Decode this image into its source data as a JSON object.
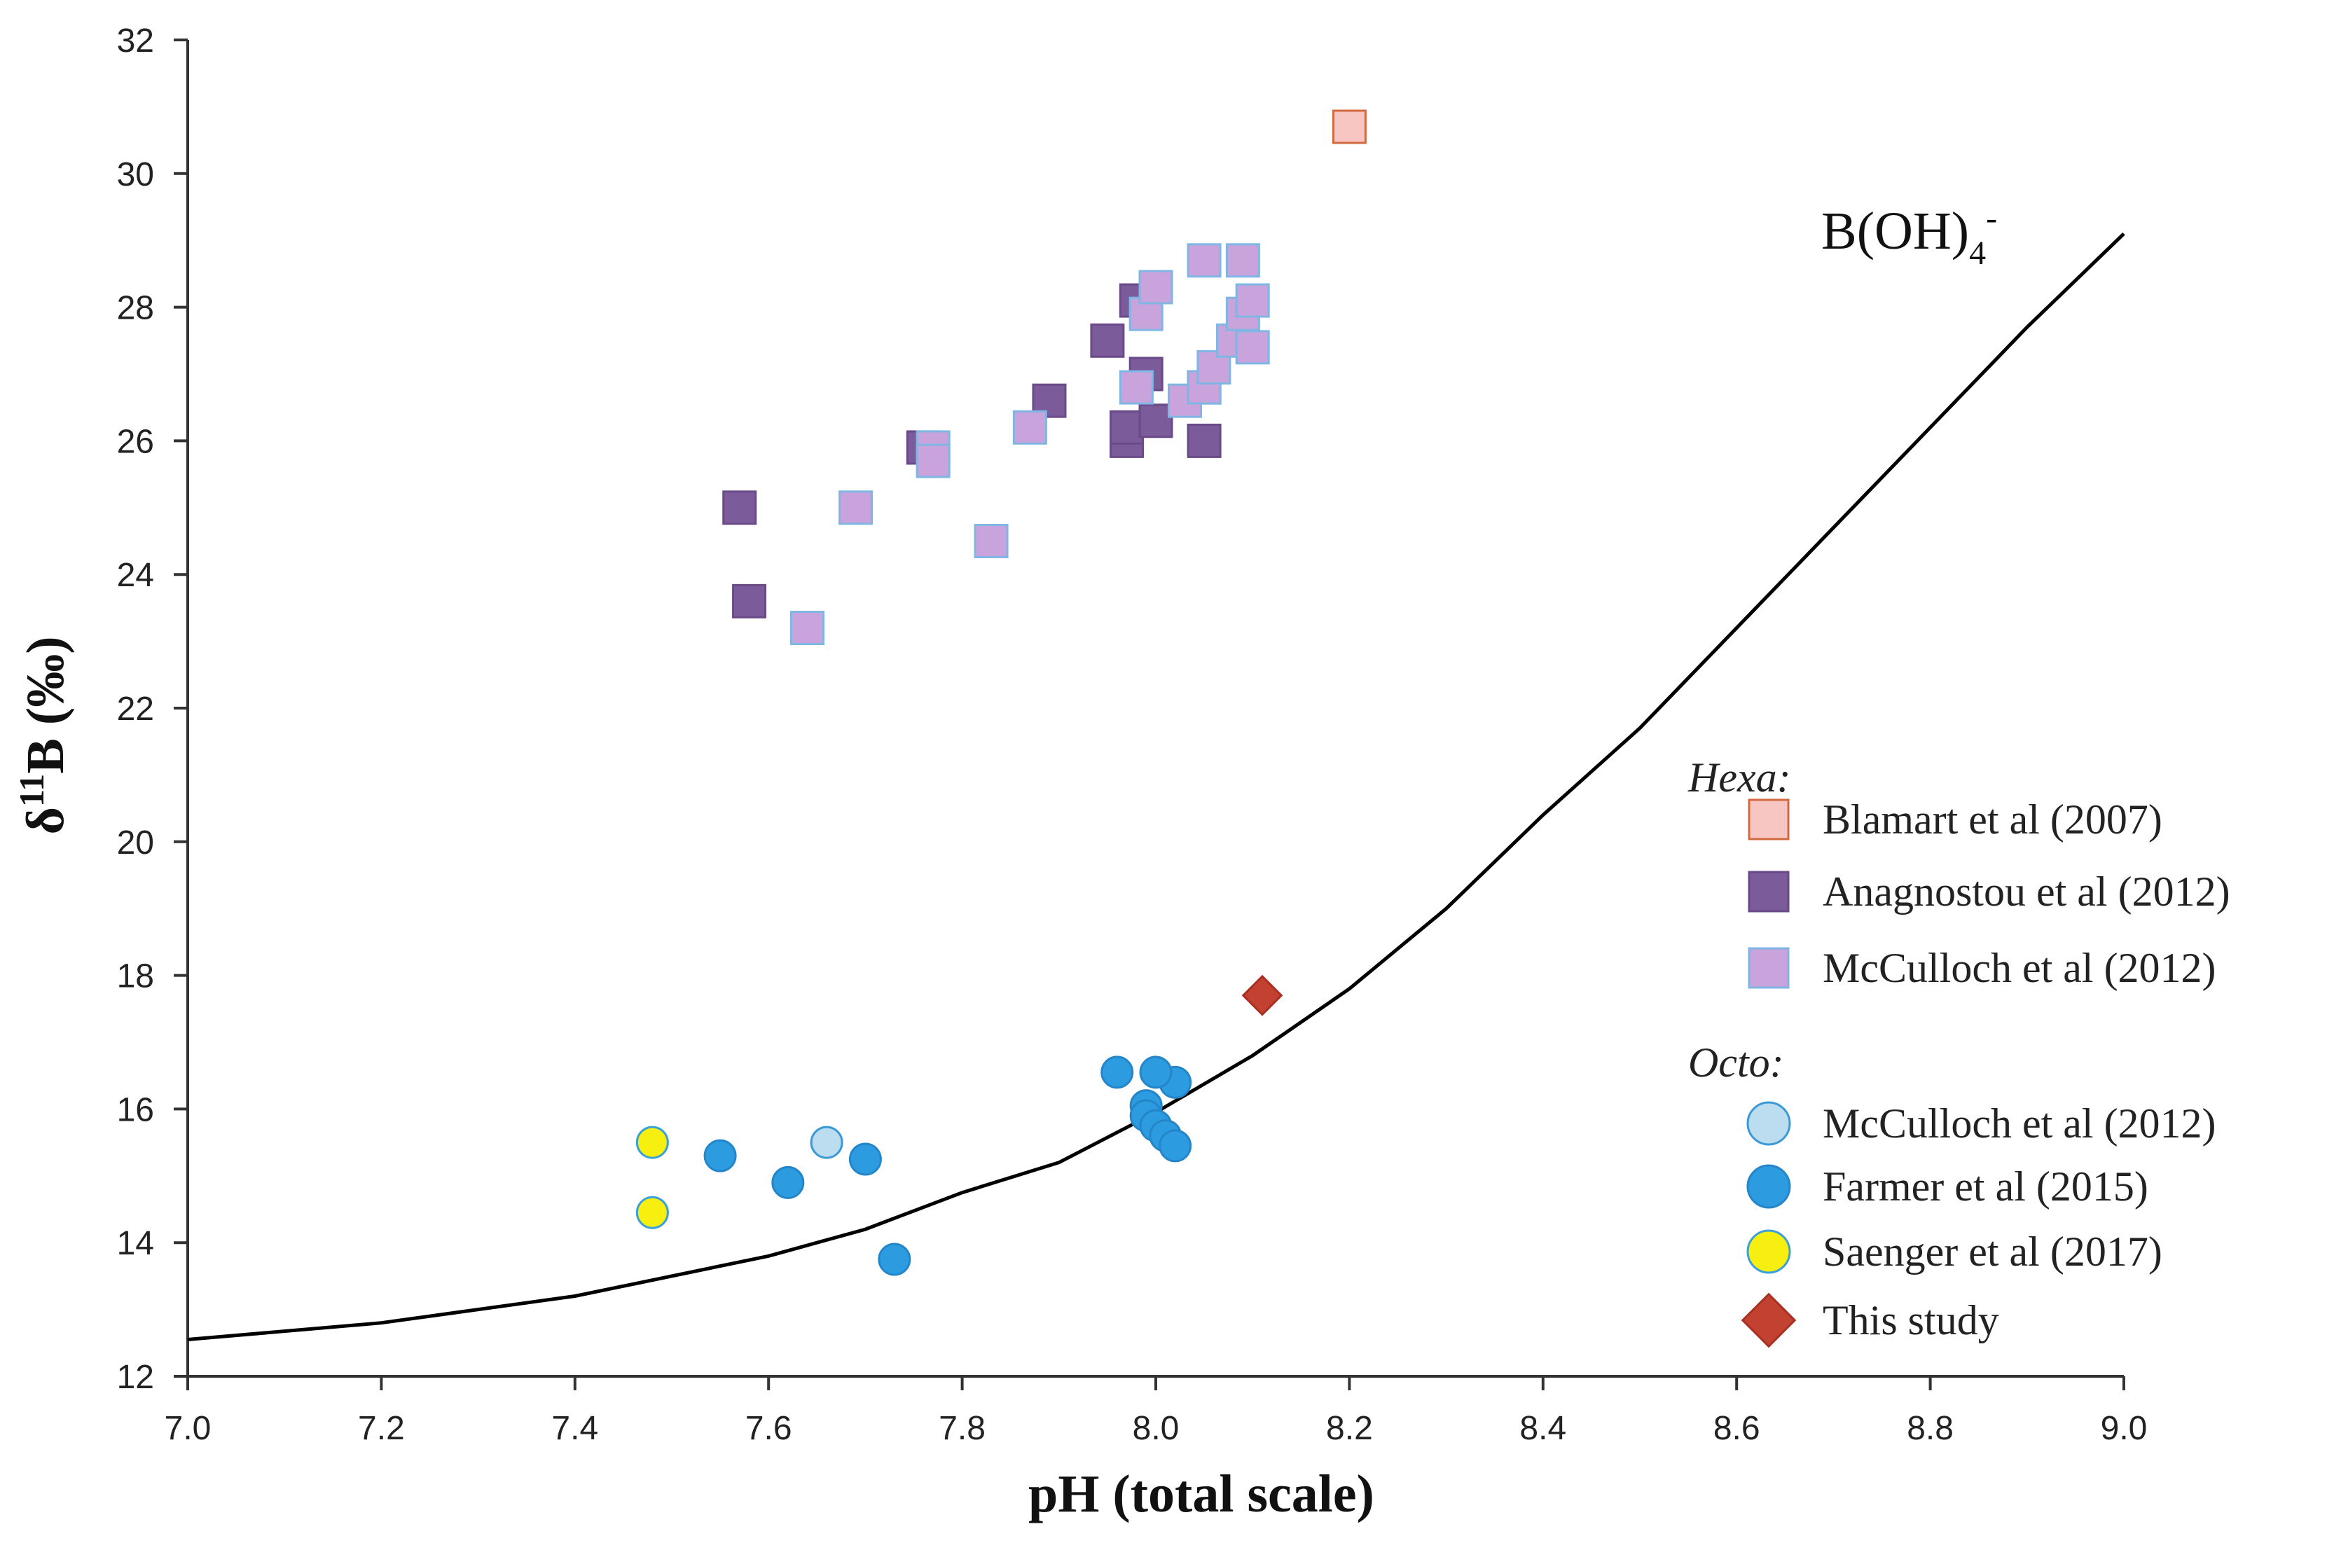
{
  "chart_data": {
    "type": "scatter",
    "title": "",
    "xlabel": "pH (total scale)",
    "ylabel_prefix": "δ",
    "ylabel_sup": "11",
    "ylabel_suffix": "B (‰)",
    "xlim": [
      7.0,
      9.0
    ],
    "ylim": [
      12,
      32
    ],
    "xticks": [
      "7.0",
      "7.2",
      "7.4",
      "7.6",
      "7.8",
      "8.0",
      "8.2",
      "8.4",
      "8.6",
      "8.8",
      "9.0"
    ],
    "yticks": [
      "12",
      "14",
      "16",
      "18",
      "20",
      "22",
      "24",
      "26",
      "28",
      "30",
      "32"
    ],
    "grid": false,
    "legend_position": "bottom-right",
    "curve": {
      "name": "B(OH)4-",
      "label_main": "B(OH)",
      "label_sub": "4",
      "label_sup": "-",
      "x": [
        7.0,
        7.2,
        7.4,
        7.6,
        7.7,
        7.8,
        7.9,
        8.0,
        8.1,
        8.2,
        8.3,
        8.4,
        8.5,
        8.6,
        8.7,
        8.8,
        8.9,
        9.0
      ],
      "y": [
        12.55,
        12.8,
        13.2,
        13.8,
        14.2,
        14.75,
        15.2,
        15.95,
        16.8,
        17.8,
        19.0,
        20.4,
        21.7,
        23.2,
        24.7,
        26.2,
        27.7,
        29.1
      ]
    },
    "groups": [
      {
        "name": "Hexa:",
        "series_indices": [
          0,
          1,
          2
        ]
      },
      {
        "name": "Octo:",
        "series_indices": [
          3,
          4,
          5,
          6
        ]
      }
    ],
    "series": [
      {
        "name": "Blamart et al (2007)",
        "marker": "square",
        "fill": "#f7c5c2",
        "stroke": "#d2693f",
        "x": [
          8.2
        ],
        "y": [
          30.7
        ]
      },
      {
        "name": "Anagnostou et al (2012)",
        "marker": "square",
        "fill": "#7b5b99",
        "stroke": "#6a4a88",
        "x": [
          7.57,
          7.58,
          7.76,
          7.89,
          7.95,
          7.97,
          7.97,
          7.98,
          7.99,
          8.0,
          8.05,
          8.05
        ],
        "y": [
          25.0,
          23.6,
          25.9,
          26.6,
          27.5,
          26.0,
          26.2,
          28.1,
          27.0,
          26.3,
          26.0,
          26.8
        ]
      },
      {
        "name": "McCulloch et al (2012)",
        "marker": "square",
        "fill": "#c9a3db",
        "stroke": "#7fb6e3",
        "x": [
          7.64,
          7.69,
          7.77,
          7.77,
          7.83,
          7.87,
          7.98,
          7.99,
          8.0,
          8.03,
          8.05,
          8.06,
          8.05,
          8.08,
          8.09,
          8.09,
          8.1,
          8.1
        ],
        "y": [
          23.2,
          25.0,
          25.9,
          25.7,
          24.5,
          26.2,
          26.8,
          27.9,
          28.3,
          26.6,
          26.8,
          27.1,
          28.7,
          27.5,
          27.9,
          28.7,
          28.1,
          27.4
        ]
      },
      {
        "name": "McCulloch et al (2012)",
        "marker": "circle",
        "fill": "#bcdcf0",
        "stroke": "#3a9ad6",
        "x": [
          7.66
        ],
        "y": [
          15.5
        ]
      },
      {
        "name": "Farmer et al (2015)",
        "marker": "circle",
        "fill": "#2d9be0",
        "stroke": "#2486c8",
        "x": [
          7.55,
          7.62,
          7.7,
          7.73,
          7.96,
          7.99,
          7.99,
          8.0,
          8.01,
          8.02,
          8.02,
          8.0
        ],
        "y": [
          15.3,
          14.9,
          15.25,
          13.75,
          16.55,
          16.05,
          15.9,
          15.75,
          15.6,
          15.45,
          16.4,
          16.55
        ]
      },
      {
        "name": "Saenger et al (2017)",
        "marker": "circle",
        "fill": "#f6ef10",
        "stroke": "#3aa0d8",
        "x": [
          7.48,
          7.48
        ],
        "y": [
          15.5,
          14.45
        ]
      },
      {
        "name": "This study",
        "marker": "diamond",
        "fill": "#c24131",
        "stroke": "#a83022",
        "x": [
          8.11
        ],
        "y": [
          17.7
        ]
      }
    ]
  }
}
